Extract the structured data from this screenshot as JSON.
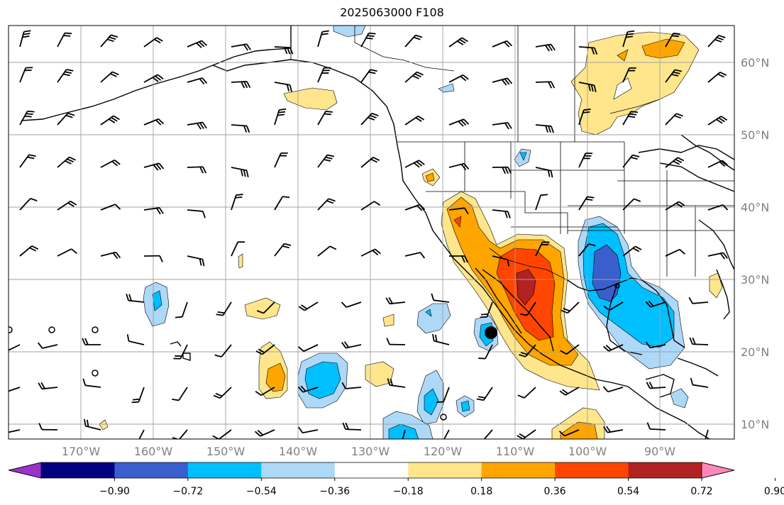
{
  "title": "2025063000 F108",
  "colorbar": {
    "ticks": [
      "−0.90",
      "−0.72",
      "−0.54",
      "−0.36",
      "−0.18",
      "0.18",
      "0.36",
      "0.54",
      "0.72",
      "0.90"
    ],
    "colors": [
      "#9933cc",
      "#000080",
      "#3a5fcd",
      "#00bfff",
      "#add8f8",
      "#ffffff",
      "#ffe68c",
      "#ffa500",
      "#ff4500",
      "#b22222",
      "#ff88b8"
    ]
  },
  "lon_labels": [
    "170°W",
    "160°W",
    "150°W",
    "140°W",
    "130°W",
    "120°W",
    "110°W",
    "100°W",
    "90°W"
  ],
  "lat_labels": [
    "60°N",
    "50°N",
    "40°N",
    "30°N",
    "20°N",
    "10°N"
  ]
}
